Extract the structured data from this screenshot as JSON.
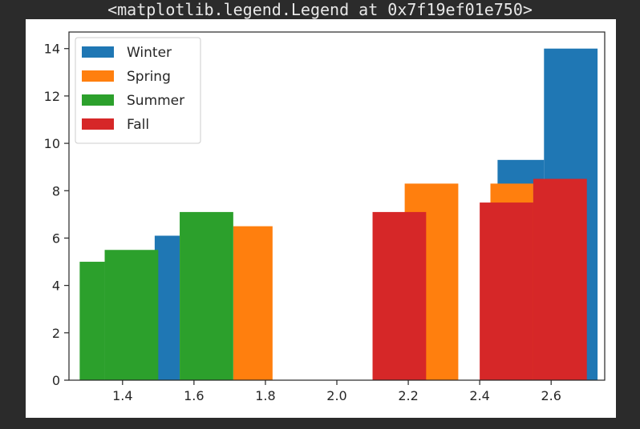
{
  "header": {
    "output_text": "<matplotlib.legend.Legend at 0x7f19ef01e750>"
  },
  "chart_data": {
    "type": "bar",
    "title": "",
    "xlabel": "",
    "ylabel": "",
    "xlim": [
      1.25,
      2.75
    ],
    "ylim": [
      0,
      14.7
    ],
    "x_ticks": [
      1.4,
      1.6,
      1.8,
      2.0,
      2.2,
      2.4,
      2.6
    ],
    "x_tick_labels": [
      "1.4",
      "1.6",
      "1.8",
      "2.0",
      "2.2",
      "2.4",
      "2.6"
    ],
    "y_ticks": [
      0,
      2,
      4,
      6,
      8,
      10,
      12,
      14
    ],
    "y_tick_labels": [
      "0",
      "2",
      "4",
      "6",
      "8",
      "10",
      "12",
      "14"
    ],
    "grid": false,
    "legend_position": "top-left",
    "series": [
      {
        "name": "Winter",
        "color": "#1f77b4",
        "bars": [
          {
            "x_start": 1.49,
            "x_end": 1.56,
            "value": 6.1
          },
          {
            "x_start": 2.45,
            "x_end": 2.58,
            "value": 9.3
          },
          {
            "x_start": 2.58,
            "x_end": 2.73,
            "value": 14.0
          }
        ]
      },
      {
        "name": "Spring",
        "color": "#ff7f0e",
        "bars": [
          {
            "x_start": 1.71,
            "x_end": 1.82,
            "value": 6.5
          },
          {
            "x_start": 2.19,
            "x_end": 2.34,
            "value": 8.3
          },
          {
            "x_start": 2.43,
            "x_end": 2.55,
            "value": 8.3
          }
        ]
      },
      {
        "name": "Summer",
        "color": "#2ca02c",
        "bars": [
          {
            "x_start": 1.28,
            "x_end": 1.35,
            "value": 5.0
          },
          {
            "x_start": 1.35,
            "x_end": 1.5,
            "value": 5.5
          },
          {
            "x_start": 1.56,
            "x_end": 1.71,
            "value": 7.1
          }
        ]
      },
      {
        "name": "Fall",
        "color": "#d62728",
        "bars": [
          {
            "x_start": 2.1,
            "x_end": 2.25,
            "value": 7.1
          },
          {
            "x_start": 2.4,
            "x_end": 2.55,
            "value": 7.5
          },
          {
            "x_start": 2.55,
            "x_end": 2.7,
            "value": 8.5
          }
        ]
      }
    ]
  }
}
